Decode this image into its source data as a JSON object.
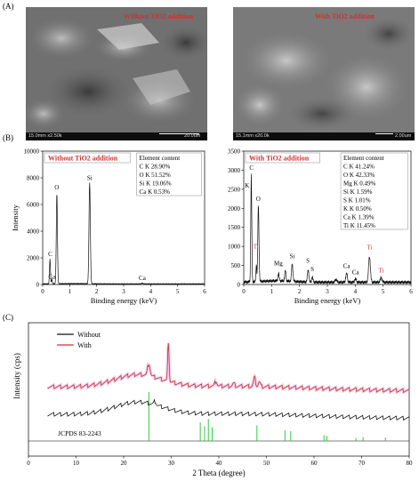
{
  "panel_labels": {
    "a": "(A)",
    "b": "(B)",
    "c": "(C)"
  },
  "sem": {
    "left": {
      "title": "Without TiO2 addition",
      "mag": "15.0mm x2.50k",
      "scale": "20.0um"
    },
    "right": {
      "title": "With TiO2 addition",
      "mag": "15.1mm x20.0k",
      "scale": "2.00um"
    }
  },
  "colors": {
    "with": "#c0392b",
    "without": "#111111",
    "ref": "#2ecc40",
    "label_red": "#d23030"
  },
  "chart_data": [
    {
      "type": "line",
      "title": "Without TiO2 addition",
      "xlabel": "Binding energy (keV)",
      "ylabel": "Intensity",
      "xlim": [
        0,
        6
      ],
      "ylim": [
        0,
        10000
      ],
      "x_ticks": [
        0,
        1,
        2,
        3,
        4,
        5,
        6
      ],
      "y_ticks": [
        0,
        2000,
        4000,
        6000,
        8000,
        10000
      ],
      "element_content_header": "Element content",
      "element_content": [
        "C  K 28.90%",
        "O  K 51.52%",
        "Si  K 19.06%",
        "Ca  K 0.53%"
      ],
      "peak_labels": [
        {
          "label": "C",
          "x": 0.28,
          "y": 2000,
          "color": "black"
        },
        {
          "label": "O",
          "x": 0.52,
          "y": 7000,
          "color": "black"
        },
        {
          "label": "Ca",
          "x": 0.34,
          "y": 300,
          "color": "black"
        },
        {
          "label": "Si",
          "x": 1.74,
          "y": 7700,
          "color": "black"
        },
        {
          "label": "Ca",
          "x": 3.69,
          "y": 200,
          "color": "black"
        }
      ],
      "peaks": [
        {
          "center": 0.27,
          "height": 1850,
          "width": 0.025
        },
        {
          "center": 0.525,
          "height": 6800,
          "width": 0.03
        },
        {
          "center": 0.34,
          "height": 350,
          "width": 0.02
        },
        {
          "center": 1.74,
          "height": 7600,
          "width": 0.035
        },
        {
          "center": 3.69,
          "height": 60,
          "width": 0.04
        }
      ],
      "baseline": 40
    },
    {
      "type": "line",
      "title": "With TiO2 addition",
      "xlabel": "Binding energy (keV)",
      "ylabel": "",
      "xlim": [
        0,
        6
      ],
      "ylim": [
        0,
        3500
      ],
      "x_ticks": [
        0,
        1,
        2,
        3,
        4,
        5,
        6
      ],
      "y_ticks": [
        0,
        500,
        1000,
        1500,
        2000,
        2500,
        3000,
        3500
      ],
      "element_content_header": "Element content",
      "element_content": [
        "C  K 41.24%",
        "O  K 42.33%",
        "Mg  K 0.49%",
        "Si  K 1.59%",
        "S  K 1.01%",
        "K  K 0.50%",
        "Ca  K 1.39%",
        "Ti  K 11.45%"
      ],
      "peak_labels": [
        {
          "label": "C",
          "x": 0.28,
          "y": 2960,
          "color": "black"
        },
        {
          "label": "K",
          "x": 0.12,
          "y": 2500,
          "color": "black"
        },
        {
          "label": "O",
          "x": 0.52,
          "y": 2150,
          "color": "black"
        },
        {
          "label": "Ti",
          "x": 0.44,
          "y": 900,
          "color": "red"
        },
        {
          "label": "Mg",
          "x": 1.24,
          "y": 450,
          "color": "black"
        },
        {
          "label": "Si",
          "x": 1.74,
          "y": 640,
          "color": "black"
        },
        {
          "label": "S",
          "x": 2.3,
          "y": 530,
          "color": "black"
        },
        {
          "label": "S",
          "x": 2.46,
          "y": 300,
          "color": "black"
        },
        {
          "label": "Ca",
          "x": 3.69,
          "y": 380,
          "color": "black"
        },
        {
          "label": "Ca",
          "x": 4.01,
          "y": 220,
          "color": "black"
        },
        {
          "label": "Ti",
          "x": 4.51,
          "y": 880,
          "color": "red"
        },
        {
          "label": "Ti",
          "x": 4.93,
          "y": 270,
          "color": "red"
        }
      ],
      "peaks": [
        {
          "center": 0.27,
          "height": 2800,
          "width": 0.025
        },
        {
          "center": 0.525,
          "height": 2000,
          "width": 0.03
        },
        {
          "center": 0.45,
          "height": 450,
          "width": 0.02
        },
        {
          "center": 1.25,
          "height": 200,
          "width": 0.03
        },
        {
          "center": 1.49,
          "height": 280,
          "width": 0.03
        },
        {
          "center": 1.74,
          "height": 450,
          "width": 0.035
        },
        {
          "center": 2.31,
          "height": 330,
          "width": 0.035
        },
        {
          "center": 2.46,
          "height": 140,
          "width": 0.03
        },
        {
          "center": 3.31,
          "height": 80,
          "width": 0.04
        },
        {
          "center": 3.69,
          "height": 230,
          "width": 0.04
        },
        {
          "center": 4.01,
          "height": 90,
          "width": 0.04
        },
        {
          "center": 4.51,
          "height": 680,
          "width": 0.045
        },
        {
          "center": 4.93,
          "height": 120,
          "width": 0.045
        }
      ],
      "baseline": 60
    },
    {
      "type": "line",
      "xlabel": "2 Theta (degree)",
      "ylabel": "Intensity (cps)",
      "xlim": [
        0,
        80
      ],
      "x_ticks": [
        0,
        10,
        20,
        30,
        40,
        50,
        60,
        70,
        80
      ],
      "series": [
        {
          "name": "Without"
        },
        {
          "name": "With"
        }
      ],
      "reference_label": "JCPDS 83-2243",
      "reference_lines": [
        {
          "x": 25.3,
          "h": 1.0
        },
        {
          "x": 36.1,
          "h": 0.38
        },
        {
          "x": 37.0,
          "h": 0.3
        },
        {
          "x": 37.8,
          "h": 0.45
        },
        {
          "x": 38.6,
          "h": 0.28
        },
        {
          "x": 48.0,
          "h": 0.32
        },
        {
          "x": 53.9,
          "h": 0.22
        },
        {
          "x": 55.1,
          "h": 0.2
        },
        {
          "x": 62.1,
          "h": 0.12
        },
        {
          "x": 62.7,
          "h": 0.1
        },
        {
          "x": 68.8,
          "h": 0.06
        },
        {
          "x": 70.3,
          "h": 0.08
        },
        {
          "x": 75.0,
          "h": 0.07
        }
      ]
    }
  ]
}
